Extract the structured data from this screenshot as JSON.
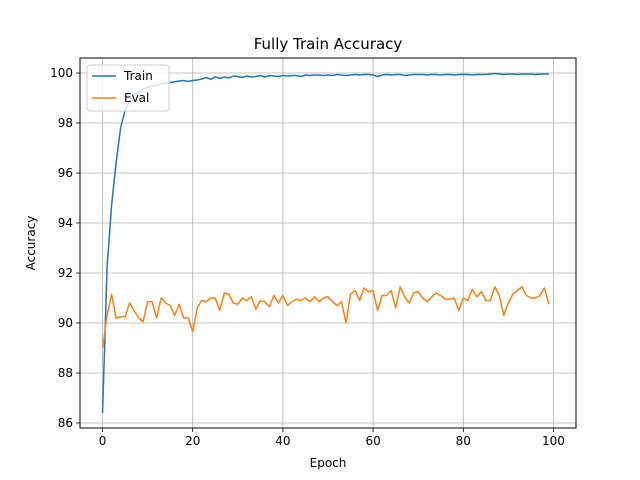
{
  "chart_data": {
    "type": "line",
    "title": "Fully Train Accuracy",
    "xlabel": "Epoch",
    "ylabel": "Accuracy",
    "xlim": [
      -5,
      105
    ],
    "ylim": [
      85.8,
      100.6
    ],
    "xticks": [
      0,
      20,
      40,
      60,
      80,
      100
    ],
    "yticks": [
      86,
      88,
      90,
      92,
      94,
      96,
      98,
      100
    ],
    "grid": true,
    "legend_position": "upper-left",
    "series": [
      {
        "name": "Train",
        "color": "#1f77b4",
        "x": [
          0,
          1,
          2,
          3,
          4,
          5,
          6,
          7,
          8,
          9,
          10,
          11,
          12,
          13,
          14,
          15,
          16,
          17,
          18,
          19,
          20,
          21,
          22,
          23,
          24,
          25,
          26,
          27,
          28,
          29,
          30,
          31,
          32,
          33,
          34,
          35,
          36,
          37,
          38,
          39,
          40,
          41,
          42,
          43,
          44,
          45,
          46,
          47,
          48,
          49,
          50,
          51,
          52,
          53,
          54,
          55,
          56,
          57,
          58,
          59,
          60,
          61,
          62,
          63,
          64,
          65,
          66,
          67,
          68,
          69,
          70,
          71,
          72,
          73,
          74,
          75,
          76,
          77,
          78,
          79,
          80,
          81,
          82,
          83,
          84,
          85,
          86,
          87,
          88,
          89,
          90,
          91,
          92,
          93,
          94,
          95,
          96,
          97,
          98,
          99
        ],
        "values": [
          86.4,
          92.2,
          94.7,
          96.4,
          97.8,
          98.5,
          98.9,
          99.1,
          99.25,
          99.35,
          99.42,
          99.48,
          99.52,
          99.56,
          99.6,
          99.62,
          99.65,
          99.68,
          99.7,
          99.66,
          99.7,
          99.72,
          99.76,
          99.82,
          99.75,
          99.85,
          99.78,
          99.84,
          99.8,
          99.88,
          99.86,
          99.82,
          99.88,
          99.84,
          99.86,
          99.9,
          99.84,
          99.9,
          99.88,
          99.86,
          99.9,
          99.88,
          99.9,
          99.9,
          99.86,
          99.92,
          99.9,
          99.92,
          99.92,
          99.9,
          99.92,
          99.9,
          99.94,
          99.92,
          99.9,
          99.92,
          99.94,
          99.92,
          99.94,
          99.94,
          99.92,
          99.86,
          99.92,
          99.94,
          99.92,
          99.94,
          99.94,
          99.9,
          99.92,
          99.94,
          99.94,
          99.94,
          99.92,
          99.94,
          99.94,
          99.92,
          99.94,
          99.94,
          99.92,
          99.94,
          99.94,
          99.94,
          99.92,
          99.94,
          99.94,
          99.94,
          99.96,
          99.98,
          99.96,
          99.94,
          99.96,
          99.96,
          99.94,
          99.96,
          99.96,
          99.96,
          99.94,
          99.96,
          99.96,
          99.96
        ]
      },
      {
        "name": "Eval",
        "color": "#ff7f0e",
        "x": [
          0,
          1,
          2,
          3,
          4,
          5,
          6,
          7,
          8,
          9,
          10,
          11,
          12,
          13,
          14,
          15,
          16,
          17,
          18,
          19,
          20,
          21,
          22,
          23,
          24,
          25,
          26,
          27,
          28,
          29,
          30,
          31,
          32,
          33,
          34,
          35,
          36,
          37,
          38,
          39,
          40,
          41,
          42,
          43,
          44,
          45,
          46,
          47,
          48,
          49,
          50,
          51,
          52,
          53,
          54,
          55,
          56,
          57,
          58,
          59,
          60,
          61,
          62,
          63,
          64,
          65,
          66,
          67,
          68,
          69,
          70,
          71,
          72,
          73,
          74,
          75,
          76,
          77,
          78,
          79,
          80,
          81,
          82,
          83,
          84,
          85,
          86,
          87,
          88,
          89,
          90,
          91,
          92,
          93,
          94,
          95,
          96,
          97,
          98,
          99
        ],
        "values": [
          89.0,
          90.3,
          91.15,
          90.2,
          90.25,
          90.25,
          90.8,
          90.5,
          90.2,
          90.05,
          90.85,
          90.85,
          90.2,
          91.0,
          90.8,
          90.7,
          90.3,
          90.75,
          90.2,
          90.2,
          89.65,
          90.6,
          90.9,
          90.85,
          91.0,
          91.0,
          90.5,
          91.2,
          91.15,
          90.8,
          90.75,
          91.0,
          90.9,
          91.05,
          90.55,
          90.9,
          90.85,
          90.65,
          91.1,
          90.8,
          91.1,
          90.7,
          90.85,
          90.95,
          90.9,
          91.0,
          90.85,
          91.05,
          90.85,
          91.0,
          91.05,
          90.85,
          90.7,
          90.85,
          90.0,
          91.15,
          91.3,
          90.9,
          91.4,
          91.25,
          91.3,
          90.5,
          91.1,
          91.1,
          91.3,
          90.6,
          91.45,
          91.05,
          90.8,
          91.2,
          91.25,
          91.0,
          90.85,
          91.05,
          91.2,
          91.1,
          90.95,
          90.95,
          91.0,
          90.5,
          91.0,
          90.9,
          91.35,
          91.05,
          91.25,
          90.9,
          90.9,
          91.45,
          91.1,
          90.3,
          90.8,
          91.15,
          91.3,
          91.45,
          91.1,
          91.0,
          91.0,
          91.1,
          91.4,
          90.75
        ]
      }
    ]
  }
}
